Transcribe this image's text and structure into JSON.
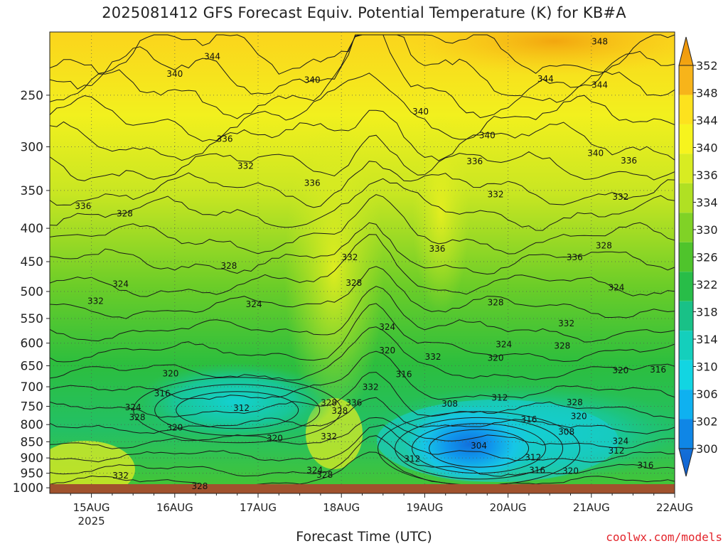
{
  "title": "2025081412 GFS Forecast Equiv. Potential Temperature (K) for KB#A",
  "branding": "coolwx.com/models",
  "chart_data": {
    "type": "heatmap",
    "title": "2025081412 GFS Forecast Equiv. Potential Temperature (K) for KB#A",
    "xlabel": "Forecast Time (UTC)",
    "ylabel": "",
    "x_ticks": [
      {
        "label": "15AUG",
        "sub": "2025",
        "day": 1
      },
      {
        "label": "16AUG",
        "sub": "",
        "day": 2
      },
      {
        "label": "17AUG",
        "sub": "",
        "day": 3
      },
      {
        "label": "18AUG",
        "sub": "",
        "day": 4
      },
      {
        "label": "19AUG",
        "sub": "",
        "day": 5
      },
      {
        "label": "20AUG",
        "sub": "",
        "day": 6
      },
      {
        "label": "21AUG",
        "sub": "",
        "day": 7
      },
      {
        "label": "22AUG",
        "sub": "",
        "day": 8
      }
    ],
    "xlim": [
      0.5,
      8
    ],
    "y_ticks": [
      250,
      300,
      350,
      400,
      450,
      500,
      550,
      600,
      650,
      700,
      750,
      800,
      850,
      900,
      950,
      1000
    ],
    "ylim": [
      200,
      1020
    ],
    "yscale": "log",
    "colorbar": {
      "labels": [
        352,
        348,
        344,
        340,
        336,
        334,
        330,
        326,
        322,
        318,
        314,
        310,
        306,
        302,
        300
      ],
      "colors": [
        "#ef9a0c",
        "#f7b41a",
        "#fde21e",
        "#f6f41e",
        "#d8ec22",
        "#b0e023",
        "#80d226",
        "#4fc42c",
        "#28bd48",
        "#19c187",
        "#14cfbc",
        "#12d5e2",
        "#0fb1f0",
        "#0f86e6",
        "#1370d8"
      ]
    },
    "contour_labels": [
      {
        "value": 348,
        "x": 7.1,
        "p": 207
      },
      {
        "value": 344,
        "x": 2.45,
        "p": 218
      },
      {
        "value": 344,
        "x": 6.45,
        "p": 236
      },
      {
        "value": 344,
        "x": 7.1,
        "p": 241
      },
      {
        "value": 340,
        "x": 2.0,
        "p": 232
      },
      {
        "value": 340,
        "x": 3.65,
        "p": 237
      },
      {
        "value": 340,
        "x": 4.95,
        "p": 265
      },
      {
        "value": 340,
        "x": 5.75,
        "p": 288
      },
      {
        "value": 340,
        "x": 7.05,
        "p": 307
      },
      {
        "value": 336,
        "x": 2.6,
        "p": 292
      },
      {
        "value": 336,
        "x": 3.65,
        "p": 341
      },
      {
        "value": 336,
        "x": 0.9,
        "p": 370
      },
      {
        "value": 336,
        "x": 5.6,
        "p": 316
      },
      {
        "value": 336,
        "x": 7.45,
        "p": 315
      },
      {
        "value": 336,
        "x": 5.15,
        "p": 430
      },
      {
        "value": 336,
        "x": 6.8,
        "p": 443
      },
      {
        "value": 336,
        "x": 4.15,
        "p": 741
      },
      {
        "value": 332,
        "x": 2.85,
        "p": 321
      },
      {
        "value": 332,
        "x": 4.1,
        "p": 443
      },
      {
        "value": 332,
        "x": 5.85,
        "p": 355
      },
      {
        "value": 332,
        "x": 7.35,
        "p": 358
      },
      {
        "value": 332,
        "x": 1.05,
        "p": 517
      },
      {
        "value": 332,
        "x": 5.1,
        "p": 630
      },
      {
        "value": 332,
        "x": 6.7,
        "p": 560
      },
      {
        "value": 332,
        "x": 3.85,
        "p": 834
      },
      {
        "value": 332,
        "x": 4.35,
        "p": 701
      },
      {
        "value": 332,
        "x": 1.35,
        "p": 958
      },
      {
        "value": 328,
        "x": 1.4,
        "p": 380
      },
      {
        "value": 328,
        "x": 2.65,
        "p": 457
      },
      {
        "value": 328,
        "x": 4.15,
        "p": 485
      },
      {
        "value": 328,
        "x": 5.85,
        "p": 520
      },
      {
        "value": 328,
        "x": 7.15,
        "p": 425
      },
      {
        "value": 328,
        "x": 6.65,
        "p": 606
      },
      {
        "value": 328,
        "x": 6.8,
        "p": 740
      },
      {
        "value": 328,
        "x": 1.55,
        "p": 780
      },
      {
        "value": 328,
        "x": 3.85,
        "p": 741
      },
      {
        "value": 328,
        "x": 3.98,
        "p": 762
      },
      {
        "value": 328,
        "x": 3.8,
        "p": 955
      },
      {
        "value": 328,
        "x": 2.3,
        "p": 995
      },
      {
        "value": 324,
        "x": 1.35,
        "p": 487
      },
      {
        "value": 324,
        "x": 2.95,
        "p": 523
      },
      {
        "value": 324,
        "x": 4.55,
        "p": 567
      },
      {
        "value": 324,
        "x": 5.95,
        "p": 603
      },
      {
        "value": 324,
        "x": 7.3,
        "p": 493
      },
      {
        "value": 324,
        "x": 1.5,
        "p": 753
      },
      {
        "value": 324,
        "x": 3.68,
        "p": 940
      },
      {
        "value": 324,
        "x": 7.35,
        "p": 848
      },
      {
        "value": 320,
        "x": 1.95,
        "p": 668
      },
      {
        "value": 320,
        "x": 4.55,
        "p": 616
      },
      {
        "value": 320,
        "x": 5.85,
        "p": 632
      },
      {
        "value": 320,
        "x": 7.35,
        "p": 661
      },
      {
        "value": 320,
        "x": 2.0,
        "p": 809
      },
      {
        "value": 320,
        "x": 3.2,
        "p": 840
      },
      {
        "value": 320,
        "x": 6.85,
        "p": 777
      },
      {
        "value": 320,
        "x": 6.75,
        "p": 942
      },
      {
        "value": 316,
        "x": 7.8,
        "p": 659
      },
      {
        "value": 316,
        "x": 4.75,
        "p": 670
      },
      {
        "value": 316,
        "x": 1.85,
        "p": 717
      },
      {
        "value": 316,
        "x": 6.25,
        "p": 786
      },
      {
        "value": 316,
        "x": 6.35,
        "p": 940
      },
      {
        "value": 316,
        "x": 7.65,
        "p": 924
      },
      {
        "value": 312,
        "x": 2.8,
        "p": 755
      },
      {
        "value": 312,
        "x": 5.9,
        "p": 728
      },
      {
        "value": 312,
        "x": 4.85,
        "p": 903
      },
      {
        "value": 312,
        "x": 6.3,
        "p": 899
      },
      {
        "value": 312,
        "x": 7.3,
        "p": 877
      },
      {
        "value": 308,
        "x": 5.3,
        "p": 743
      },
      {
        "value": 308,
        "x": 6.7,
        "p": 821
      },
      {
        "value": 304,
        "x": 5.65,
        "p": 862
      }
    ]
  }
}
